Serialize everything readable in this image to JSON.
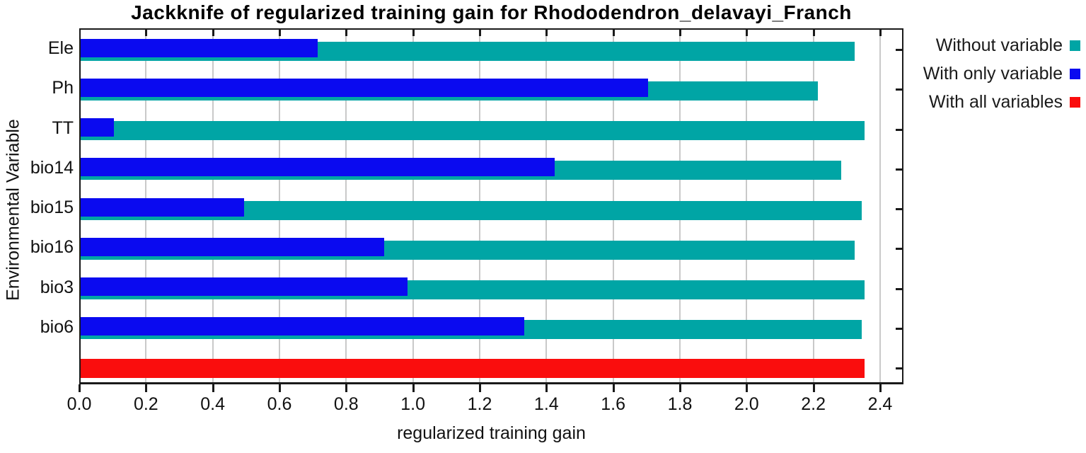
{
  "title": "Jackknife of regularized training gain for Rhododendron_delavayi_Franch",
  "chart_data": {
    "type": "bar",
    "orientation": "horizontal",
    "title": "Jackknife of regularized training gain for Rhododendron_delavayi_Franch",
    "xlabel": "regularized training gain",
    "ylabel": "Environmental Variable",
    "categories": [
      "Ele",
      "Ph",
      "TT",
      "bio14",
      "bio15",
      "bio16",
      "bio3",
      "bio6"
    ],
    "series": [
      {
        "name": "Without variable",
        "color": "#00a5a5",
        "values": [
          2.32,
          2.21,
          2.35,
          2.28,
          2.34,
          2.32,
          2.35,
          2.34
        ]
      },
      {
        "name": "With only variable",
        "color": "#0a0af0",
        "values": [
          0.71,
          1.7,
          0.1,
          1.42,
          0.49,
          0.91,
          0.98,
          1.33
        ]
      },
      {
        "name": "With all variables",
        "color": "#fa0d0d",
        "values": [
          2.35
        ]
      }
    ],
    "xticks": [
      "0.0",
      "0.2",
      "0.4",
      "0.6",
      "0.8",
      "1.0",
      "1.2",
      "1.4",
      "1.6",
      "1.8",
      "2.0",
      "2.2",
      "2.4"
    ],
    "xlim": [
      0,
      2.47
    ],
    "grid": "vertical-gray",
    "legend_position": "top-right"
  },
  "legend": {
    "items": [
      {
        "label": "Without variable",
        "color": "#00a5a5"
      },
      {
        "label": "With only variable",
        "color": "#0a0af0"
      },
      {
        "label": "With all variables",
        "color": "#fa0d0d"
      }
    ]
  },
  "colors": {
    "grid": "#c9c9c9",
    "border": "#1a1a1a",
    "text": "#111111",
    "background": "#ffffff"
  }
}
